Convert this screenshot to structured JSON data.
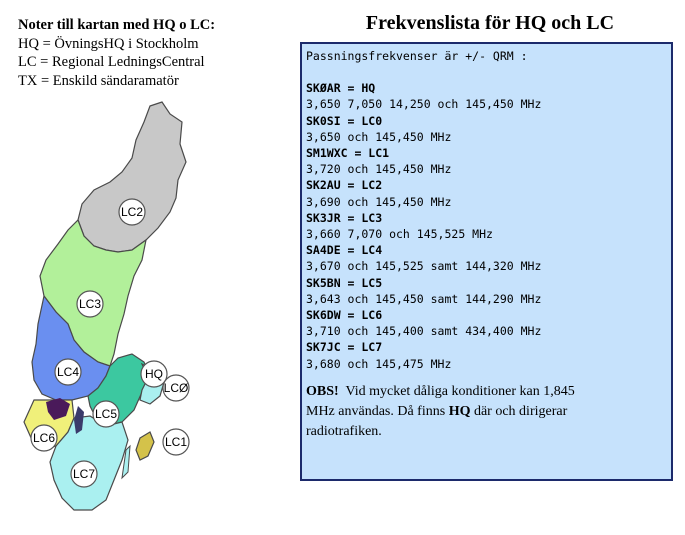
{
  "notes": {
    "title": "Noter till kartan med HQ o LC:",
    "lines": [
      "HQ = ÖvningsHQ i Stockholm",
      "LC = Regional LedningsCentral",
      "TX = Enskild sändaramatör"
    ]
  },
  "page_title": "Frekvenslista för HQ och LC",
  "freq": {
    "intro": "Passningsfrekvenser är +/- QRM :",
    "entries": [
      {
        "call": "SKØAR = HQ",
        "freqs": "3,650 7,050 14,250 och 145,450 MHz"
      },
      {
        "call": "SK0SI = LC0",
        "freqs": "3,650 och 145,450 MHz"
      },
      {
        "call": "SM1WXC = LC1",
        "freqs": "3,720 och 145,450 MHz"
      },
      {
        "call": "SK2AU = LC2",
        "freqs": "3,690 och 145,450 MHz"
      },
      {
        "call": "SK3JR = LC3",
        "freqs": "3,660 7,070 och 145,525 MHz"
      },
      {
        "call": "SA4DE = LC4",
        "freqs": "3,670 och 145,525 samt 144,320 MHz"
      },
      {
        "call": "SK5BN = LC5",
        "freqs": "3,643 och 145,450 samt 144,290 MHz"
      },
      {
        "call": "SK6DW = LC6",
        "freqs": "3,710 och 145,400 samt 434,400 MHz"
      },
      {
        "call": "SK7JC = LC7",
        "freqs": "3,680 och 145,475 MHz"
      }
    ],
    "obs": {
      "label": "OBS!",
      "text_before": "Vid mycket dåliga konditioner kan 1,845 MHz användas. Då finns",
      "hq": "HQ",
      "text_after": "där och dirigerar radiotrafiken."
    }
  },
  "map": {
    "labels": {
      "lc2": "LC2",
      "lc3": "LC3",
      "lc4": "LC4",
      "lc5": "LC5",
      "lc6": "LC6",
      "lc7": "LC7",
      "lc0": "LCØ",
      "lc1": "LC1",
      "hq": "HQ"
    },
    "colors": {
      "lc2": "#c8c8c8",
      "lc3": "#b2f09a",
      "lc4": "#6a8ff0",
      "lc5": "#3cc8a0",
      "lc6": "#f0f07a",
      "lc7": "#aaf0f0",
      "lc1": "#d4c24a",
      "outline": "#4a4a4a"
    }
  }
}
